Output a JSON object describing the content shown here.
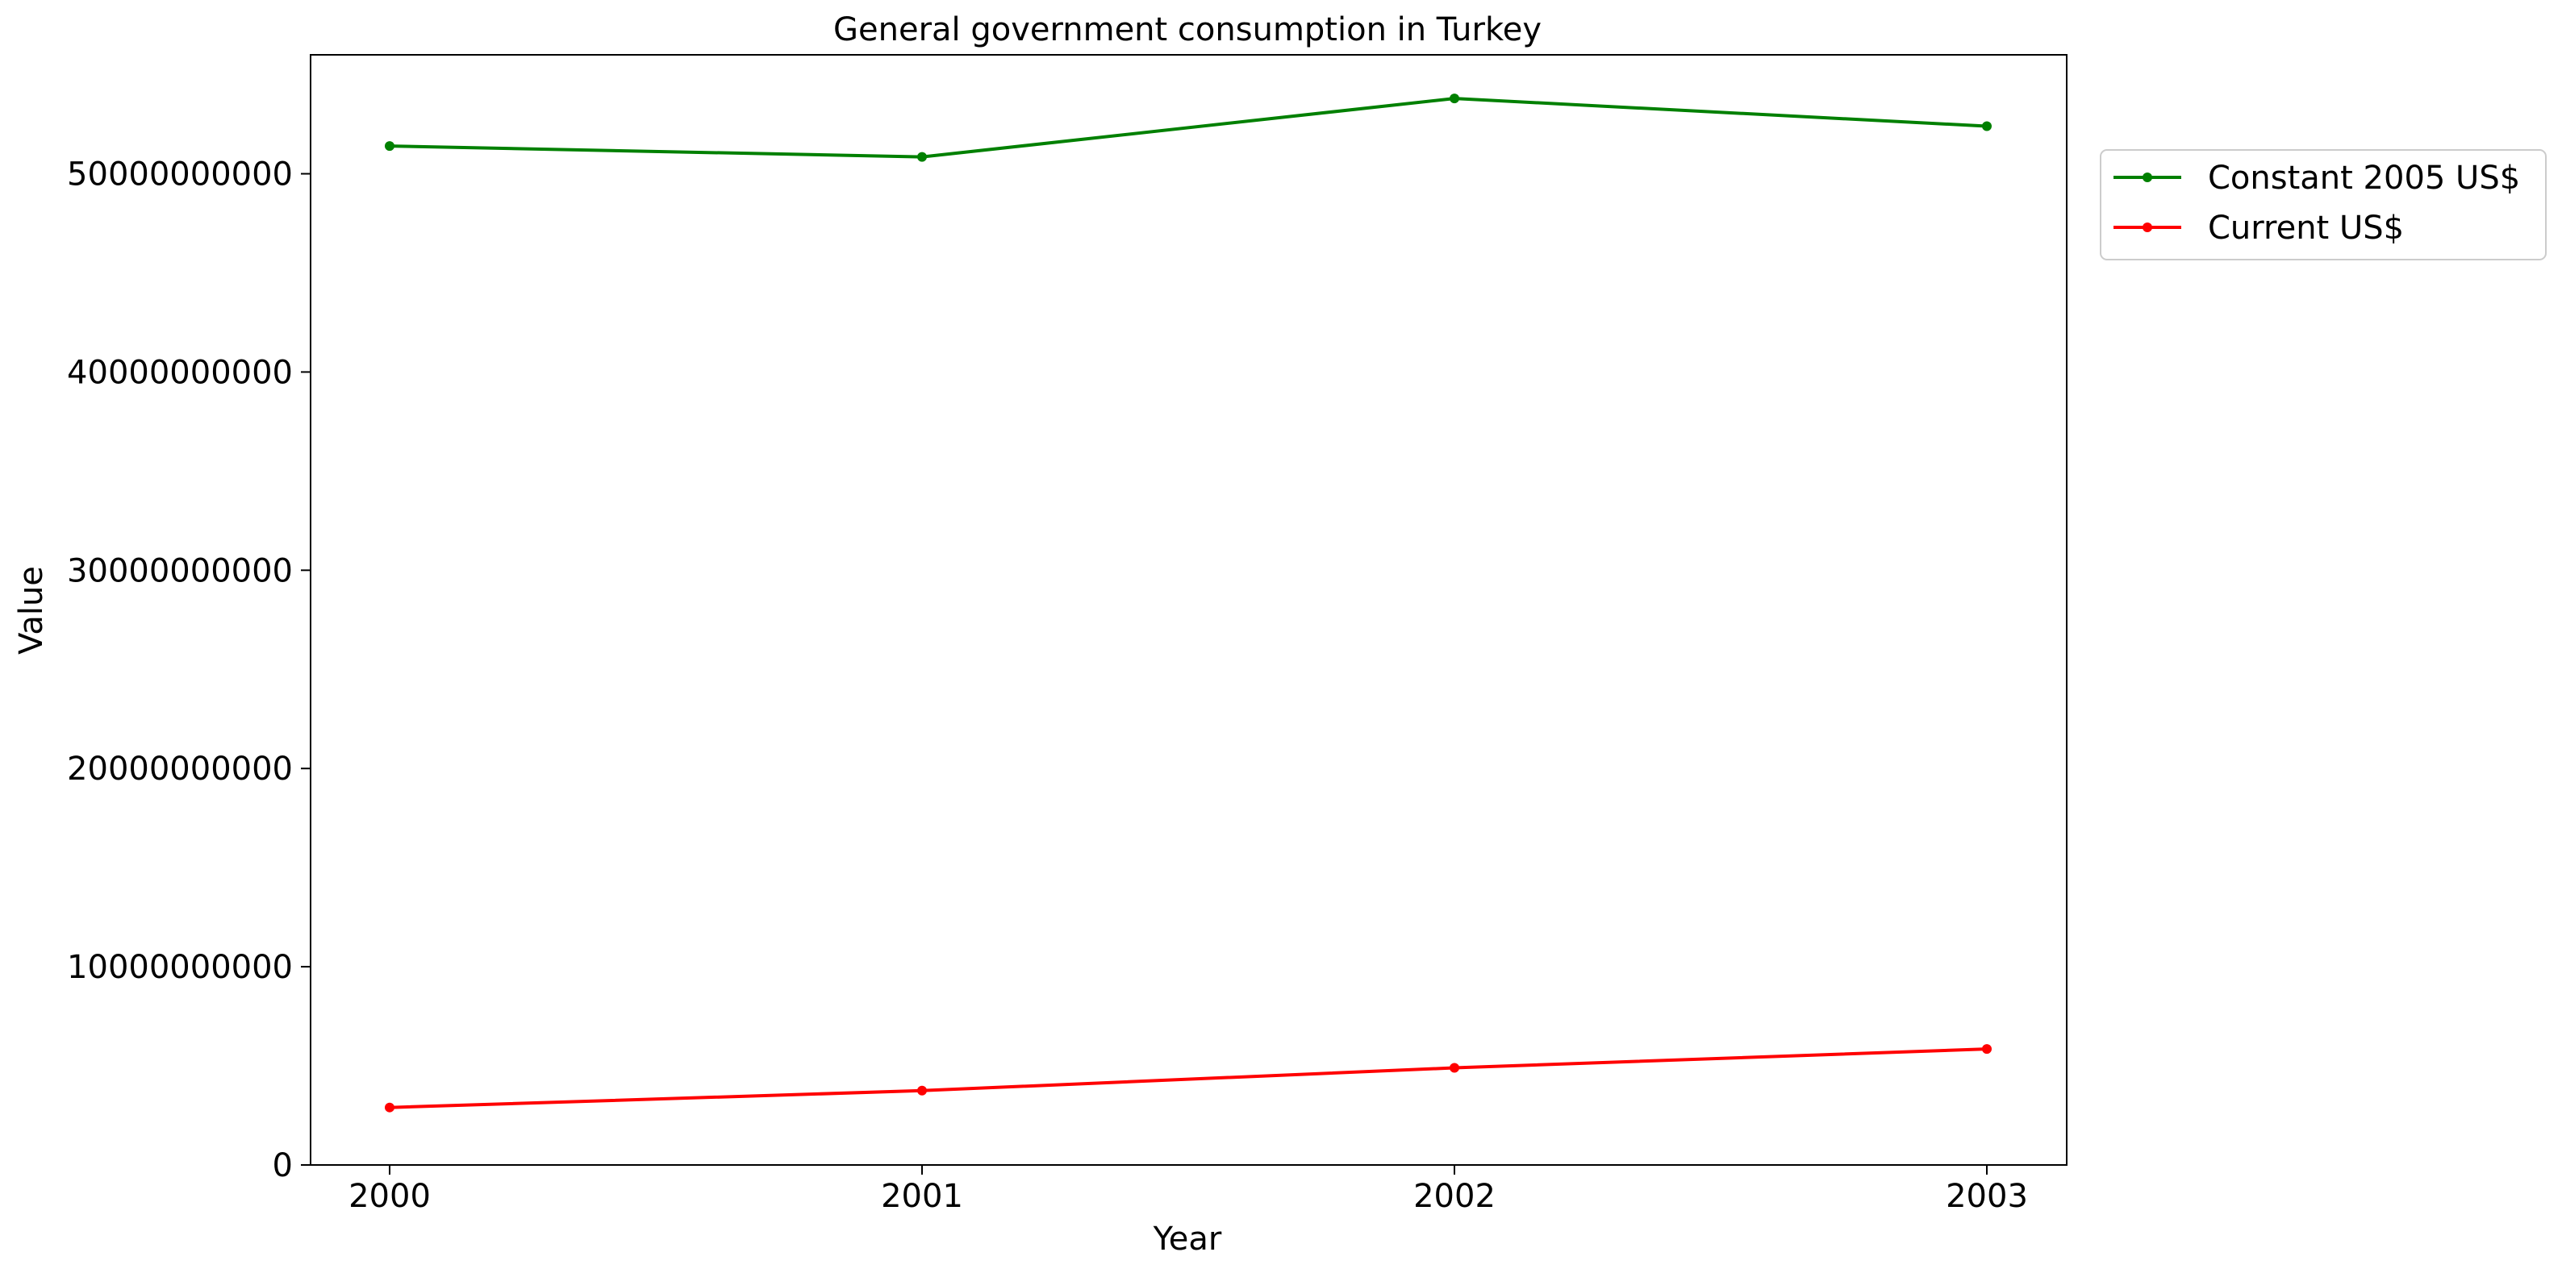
{
  "chart_data": {
    "type": "line",
    "title": "General government consumption in Turkey",
    "xlabel": "Year",
    "ylabel": "Value",
    "x": [
      "2000",
      "2001",
      "2002",
      "2003"
    ],
    "ylim": [
      0,
      56000000000
    ],
    "yticks": [
      0,
      10000000000,
      20000000000,
      30000000000,
      40000000000,
      50000000000
    ],
    "ytick_labels": [
      "0",
      "10000000000",
      "20000000000",
      "30000000000",
      "40000000000",
      "50000000000"
    ],
    "grid": false,
    "legend_position": "outside-right-top",
    "series": [
      {
        "name": "Constant 2005 US$",
        "color": "#008000",
        "marker": "circle",
        "values": [
          51400000000,
          50850000000,
          53800000000,
          52400000000
        ]
      },
      {
        "name": "Current US$",
        "color": "#ff0000",
        "marker": "circle",
        "values": [
          2900000000,
          3750000000,
          4900000000,
          5850000000
        ]
      }
    ]
  }
}
